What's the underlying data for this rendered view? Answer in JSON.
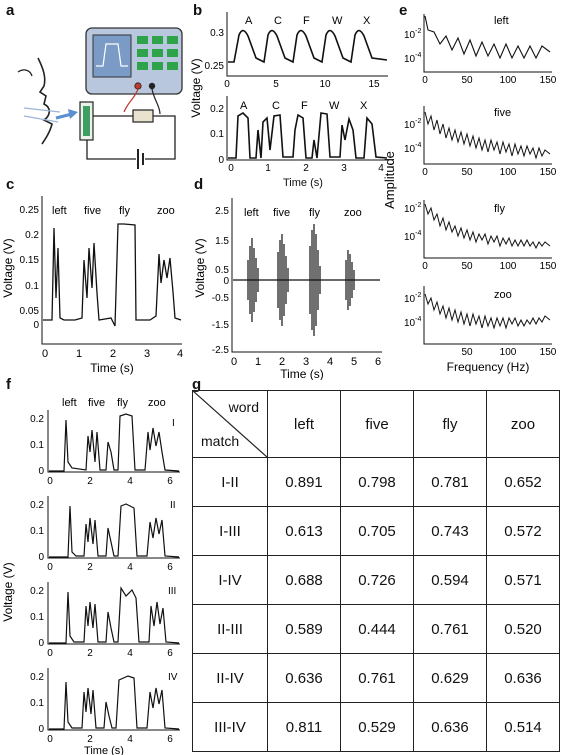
{
  "panels": {
    "a": {
      "letter": "a"
    },
    "b": {
      "letter": "b",
      "ylabel": "Voltage (V)",
      "xlabel": "Time (s)",
      "top": {
        "yticks": [
          "0.3",
          "0.25"
        ],
        "xticks": [
          "0",
          "5",
          "10",
          "15"
        ],
        "letters": [
          "A",
          "C",
          "F",
          "W",
          "X"
        ]
      },
      "bottom": {
        "yticks": [
          "0.2",
          "0.1",
          "0"
        ],
        "xticks": [
          "0",
          "1",
          "2",
          "3",
          "4"
        ],
        "letters": [
          "A",
          "C",
          "F",
          "W",
          "X"
        ]
      }
    },
    "c": {
      "letter": "c",
      "ylabel": "Voltage (V)",
      "xlabel": "Time (s)",
      "yticks": [
        "0.25",
        "0.2",
        "0.15",
        "0.1",
        "0.05",
        "0"
      ],
      "xticks": [
        "0",
        "1",
        "2",
        "3",
        "4"
      ],
      "words": [
        "left",
        "five",
        "fly",
        "zoo"
      ]
    },
    "d": {
      "letter": "d",
      "ylabel": "Voltage (V)",
      "xlabel": "Time (s)",
      "yticks": [
        "2.5",
        "1.5",
        "0.5",
        "0",
        "-0.5",
        "-1.5",
        "-2.5"
      ],
      "xticks": [
        "0",
        "1",
        "2",
        "3",
        "4",
        "5",
        "6"
      ],
      "words": [
        "left",
        "five",
        "fly",
        "zoo"
      ]
    },
    "e": {
      "letter": "e",
      "ylabel": "Amplitude",
      "xlabel": "Frequency  (Hz)",
      "words": [
        "left",
        "five",
        "fly",
        "zoo"
      ],
      "ytick_high": "10",
      "ytick_high_exp": "-2",
      "ytick_low": "10",
      "ytick_low_exp": "-4",
      "xticks": [
        "0",
        "50",
        "100",
        "150"
      ]
    },
    "f": {
      "letter": "f",
      "ylabel": "Voltage (V)",
      "xlabel": "Time (s)",
      "words": [
        "left",
        "five",
        "fly",
        "zoo"
      ],
      "yticks": [
        "0.2",
        "0.1",
        "0"
      ],
      "xticks": [
        "0",
        "2",
        "4",
        "6"
      ],
      "romans": [
        "I",
        "II",
        "III",
        "IV"
      ]
    },
    "g": {
      "letter": "g"
    }
  },
  "table": {
    "corner_word": "word",
    "corner_match": "match",
    "columns": [
      "left",
      "five",
      "fly",
      "zoo"
    ],
    "rows": [
      {
        "label": "I-II",
        "values": [
          "0.891",
          "0.798",
          "0.781",
          "0.652"
        ]
      },
      {
        "label": "I-III",
        "values": [
          "0.613",
          "0.705",
          "0.743",
          "0.572"
        ]
      },
      {
        "label": "I-IV",
        "values": [
          "0.688",
          "0.726",
          "0.594",
          "0.571"
        ]
      },
      {
        "label": "II-III",
        "values": [
          "0.589",
          "0.444",
          "0.761",
          "0.520"
        ]
      },
      {
        "label": "II-IV",
        "values": [
          "0.636",
          "0.761",
          "0.629",
          "0.636"
        ]
      },
      {
        "label": "III-IV",
        "values": [
          "0.811",
          "0.529",
          "0.636",
          "0.514"
        ]
      }
    ]
  },
  "colors": {
    "screen": "#7a9bc6",
    "device": "#b8c7de",
    "button": "#2fa34a",
    "sensor": "#3f9f62",
    "airflow": "#5b8fd0",
    "wire_red": "#c0392b"
  }
}
